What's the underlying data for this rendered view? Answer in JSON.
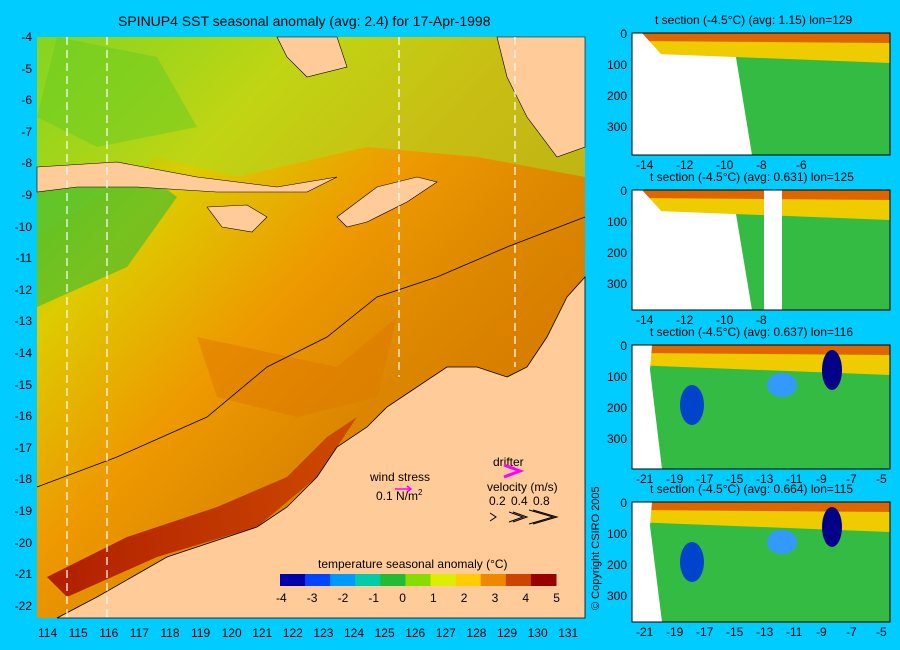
{
  "main_map": {
    "title": "SPINUP4 SST seasonal anomaly (avg: 2.4) for 17-Apr-1998",
    "lat_labels": [
      "-4",
      "-5",
      "-6",
      "-7",
      "-8",
      "-9",
      "-10",
      "-11",
      "-12",
      "-13",
      "-14",
      "-15",
      "-16",
      "-17",
      "-18",
      "-19",
      "-20",
      "-21",
      "-22"
    ],
    "lon_labels": [
      "114",
      "115",
      "116",
      "117",
      "118",
      "119",
      "120",
      "121",
      "122",
      "123",
      "124",
      "125",
      "126",
      "127",
      "128",
      "129",
      "130",
      "131"
    ],
    "wind_stress": {
      "label": "wind stress",
      "scale_label": "0.1 N/m",
      "superscript": "2"
    },
    "drifter": {
      "label": "drifter"
    },
    "velocity": {
      "label": "velocity (m/s)",
      "scale": [
        "0.2",
        "0.4",
        "0.8"
      ]
    },
    "colorbar": {
      "title": "temperature seasonal anomaly (°C)",
      "ticks": [
        "-4",
        "-3",
        "-2",
        "-1",
        "0",
        "1",
        "2",
        "3",
        "4",
        "5"
      ],
      "colors": [
        "#0000aa",
        "#0044ff",
        "#0099ff",
        "#00ccaa",
        "#22bb33",
        "#88dd00",
        "#ddee00",
        "#ffcc00",
        "#ee8800",
        "#cc4400",
        "#990000"
      ]
    }
  },
  "sections": [
    {
      "title": "t section (-4.5°C) (avg: 1.15) lon=129",
      "depth_labels": [
        "0",
        "100",
        "200",
        "300"
      ],
      "x_labels": [
        "-14",
        "-12",
        "-10",
        "-8",
        "-6"
      ]
    },
    {
      "title": "t section (-4.5°C) (avg: 0.631) lon=125",
      "depth_labels": [
        "0",
        "100",
        "200",
        "300"
      ],
      "x_labels": [
        "-14",
        "-12",
        "-10",
        "-8"
      ]
    },
    {
      "title": "t section (-4.5°C) (avg: 0.637) lon=116",
      "depth_labels": [
        "0",
        "100",
        "200",
        "300"
      ],
      "x_labels": [
        "-21",
        "-19",
        "-17",
        "-15",
        "-13",
        "-11",
        "-9",
        "-7",
        "-5"
      ]
    },
    {
      "title": "t section (-4.5°C) (avg: 0.664) lon=115",
      "depth_labels": [
        "0",
        "100",
        "200",
        "300"
      ],
      "x_labels": [
        "-21",
        "-19",
        "-17",
        "-15",
        "-13",
        "-11",
        "-9",
        "-7",
        "-5"
      ]
    }
  ],
  "copyright": "© Copyright CSIRO 2005"
}
